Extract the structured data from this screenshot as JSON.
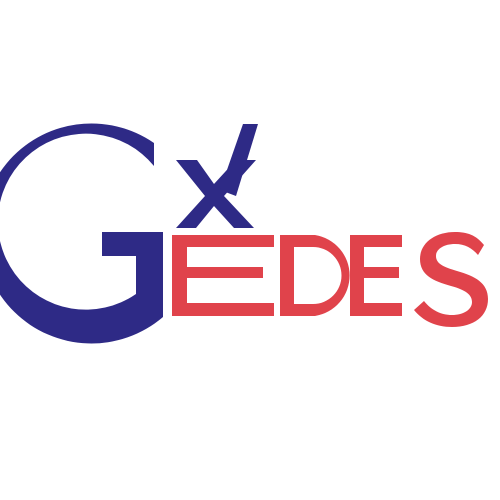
{
  "logo": {
    "name": "GEDES",
    "letters": {
      "big_g": "G",
      "e": "E",
      "d": "D",
      "e2": "E",
      "s": "S"
    },
    "colors": {
      "navy": "#2e2a86",
      "red": "#e0434b",
      "background": "#ffffff"
    }
  }
}
